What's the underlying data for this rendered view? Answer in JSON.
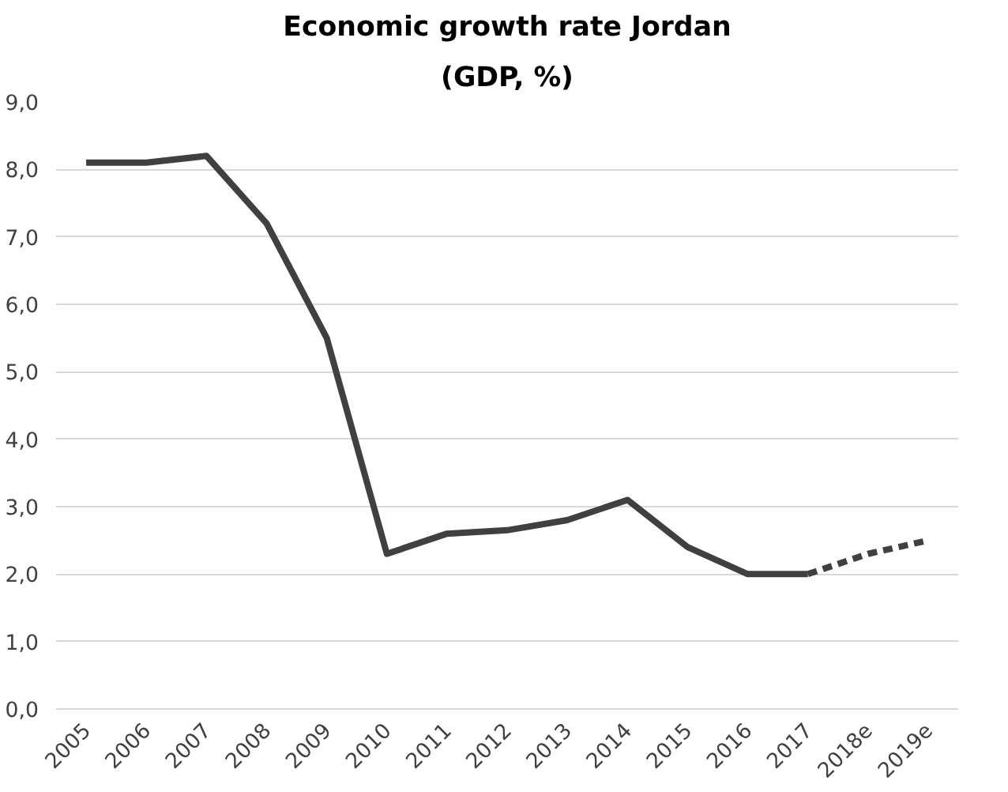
{
  "chart_data": {
    "type": "line",
    "title": "Economic growth rate Jordan",
    "subtitle": "(GDP, %)",
    "categories": [
      "2005",
      "2006",
      "2007",
      "2008",
      "2009",
      "2010",
      "2011",
      "2012",
      "2013",
      "2014",
      "2015",
      "2016",
      "2017",
      "2018e",
      "2019e"
    ],
    "series": [
      {
        "color": "#404040",
        "line_style": "solid",
        "values": [
          8.1,
          8.1,
          8.2,
          7.2,
          5.5,
          2.3,
          2.6,
          2.65,
          2.8,
          3.1,
          2.4,
          2.0,
          2.0,
          null,
          null
        ]
      },
      {
        "color": "#404040",
        "line_style": "dashed",
        "values": [
          null,
          null,
          null,
          null,
          null,
          null,
          null,
          null,
          null,
          null,
          null,
          null,
          2.0,
          2.3,
          2.5
        ]
      }
    ],
    "ylim": [
      0,
      9
    ],
    "yticks": [
      {
        "value": 0,
        "label": "0,0"
      },
      {
        "value": 1,
        "label": "1,0"
      },
      {
        "value": 2,
        "label": "2,0"
      },
      {
        "value": 3,
        "label": "3,0"
      },
      {
        "value": 4,
        "label": "4,0"
      },
      {
        "value": 5,
        "label": "5,0"
      },
      {
        "value": 6,
        "label": "6,0"
      },
      {
        "value": 7,
        "label": "7,0"
      },
      {
        "value": 8,
        "label": "8,0"
      },
      {
        "value": 9,
        "label": "9,0"
      }
    ],
    "grid": "y",
    "marker": "none"
  }
}
